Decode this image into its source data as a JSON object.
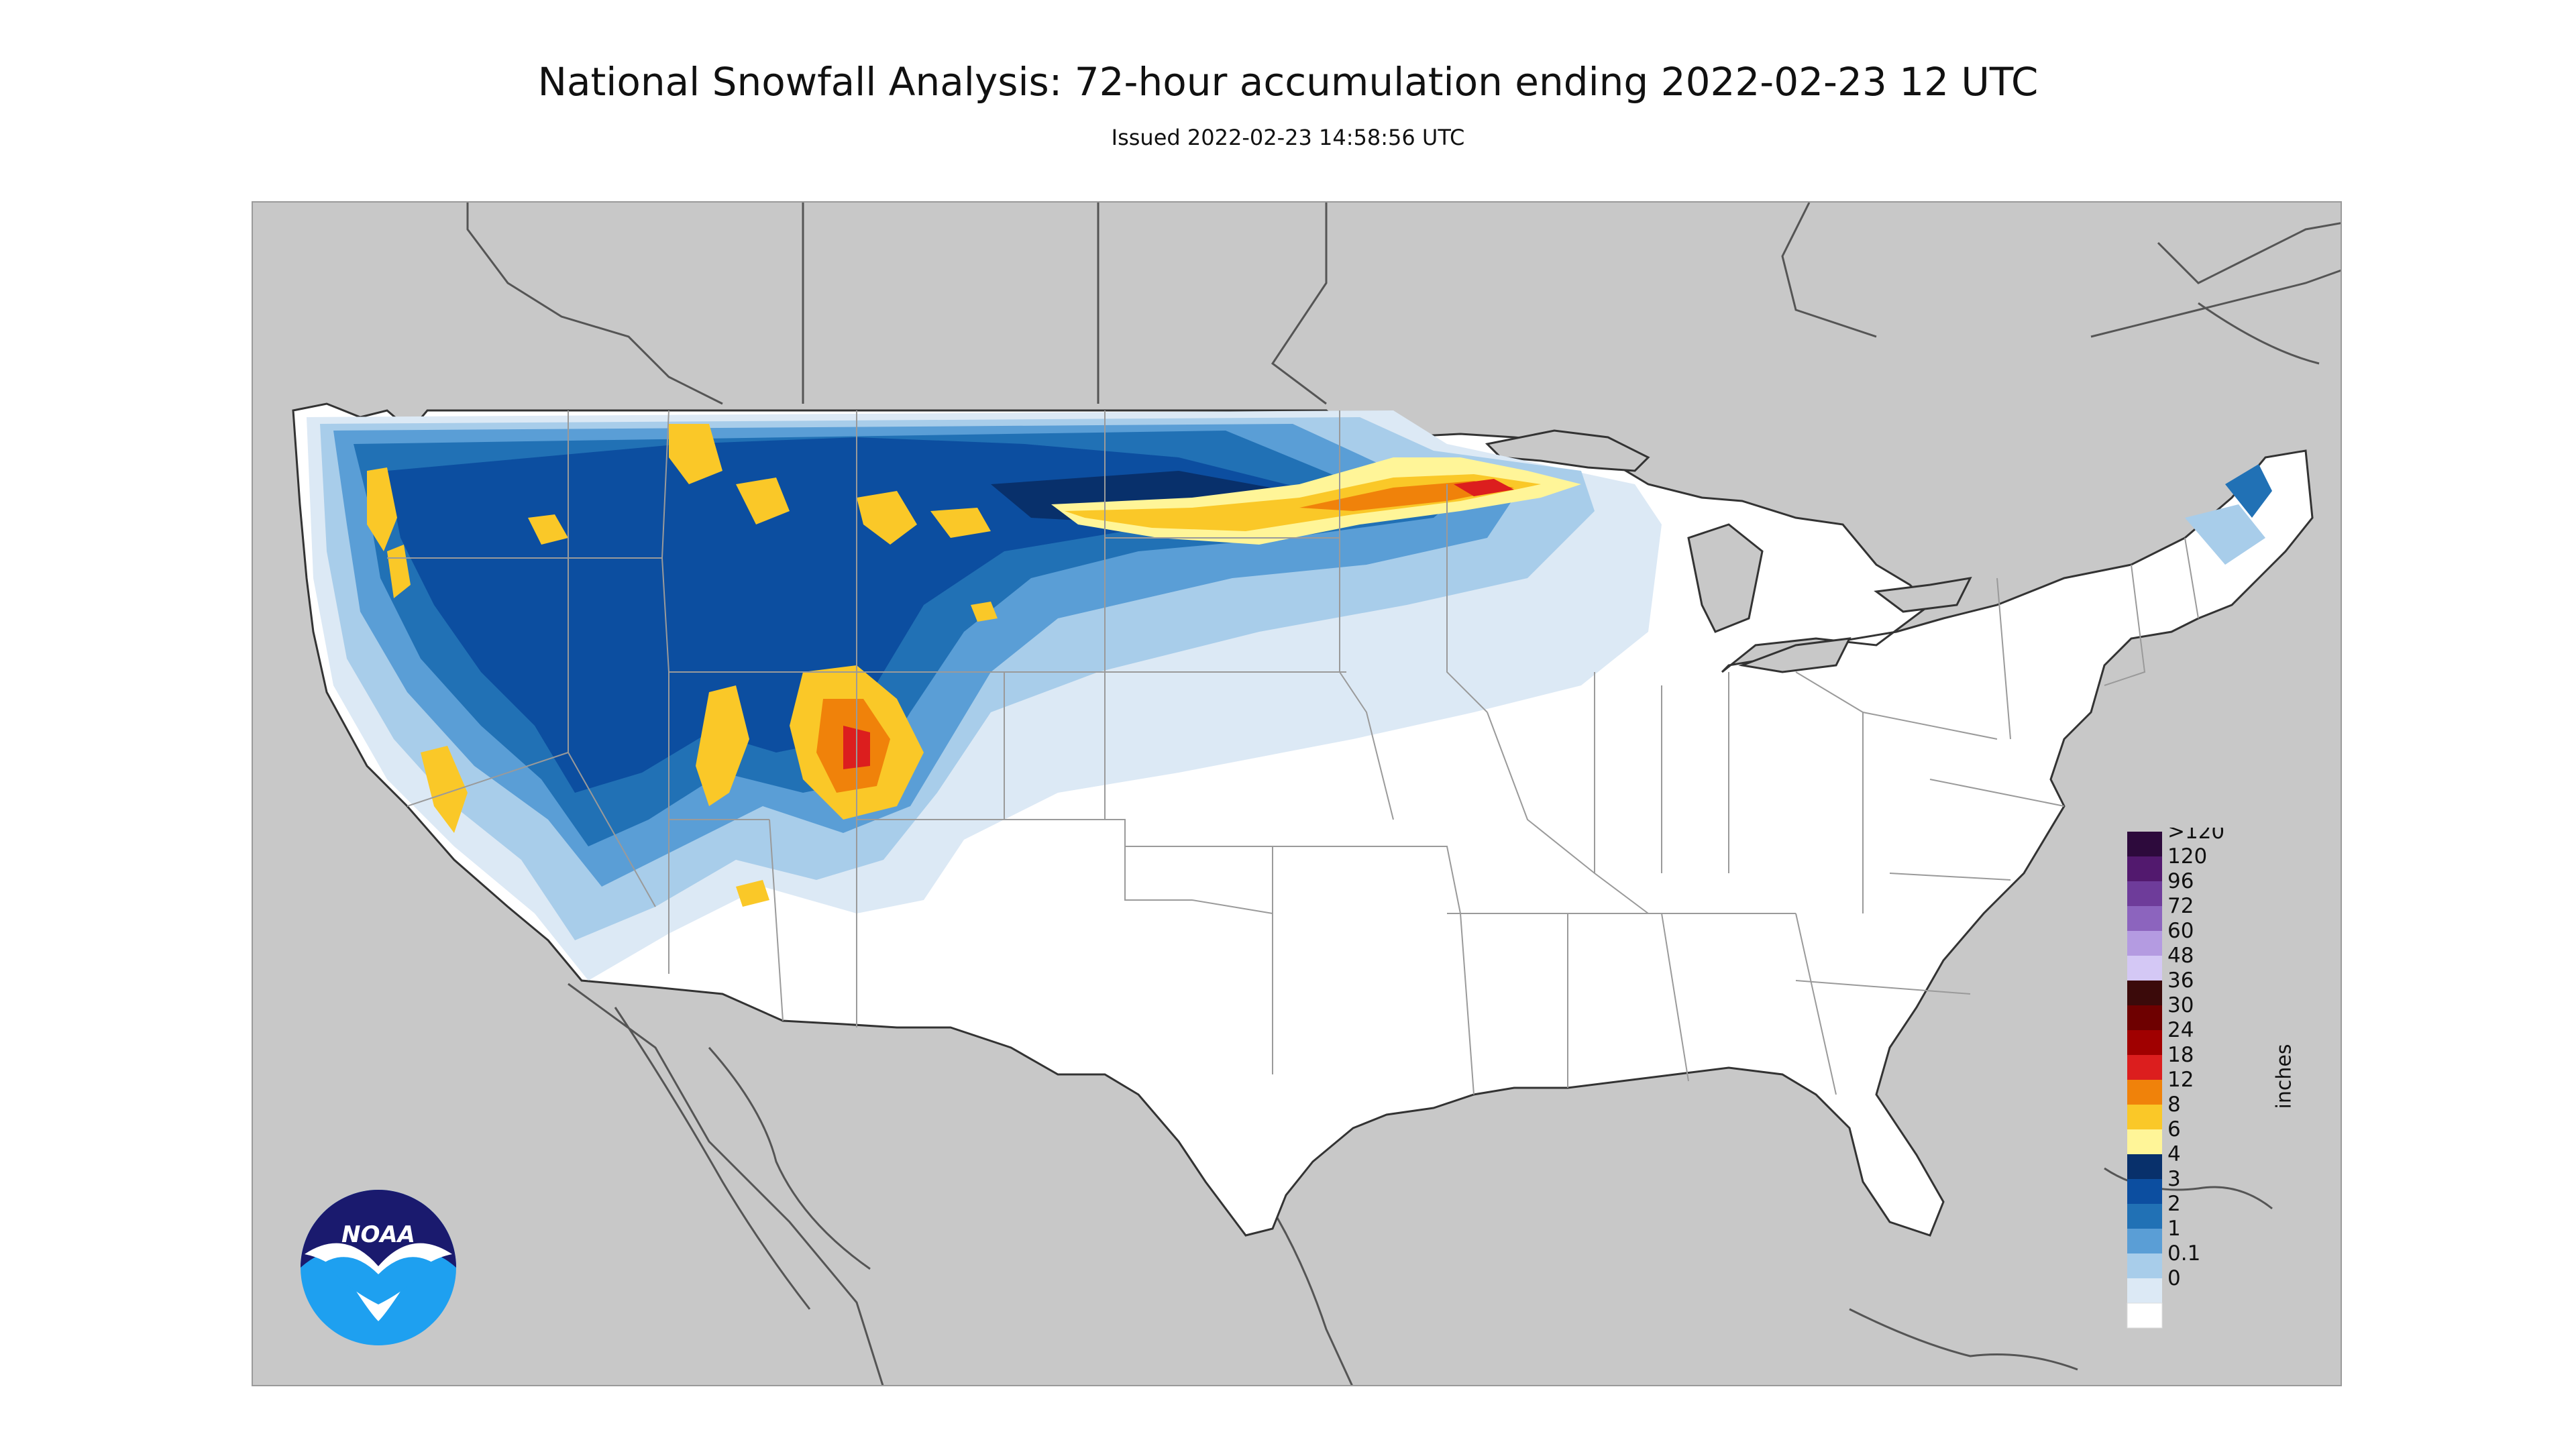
{
  "header": {
    "title": "National Snowfall Analysis: 72-hour accumulation ending 2022-02-23 12 UTC",
    "issued": "Issued 2022-02-23 14:58:56 UTC"
  },
  "colors": {
    "ocean_and_foreign_land": "#c8c8c8",
    "land_no_snow": "#ffffff",
    "borders": "#8f8f8f",
    "coastline": "#2b2b2b"
  },
  "legend": {
    "units_label": "inches",
    "items": [
      {
        "label": ">120",
        "color": "#2d0a3c"
      },
      {
        "label": "120",
        "color": "#52196e"
      },
      {
        "label": "96",
        "color": "#6e3c9a"
      },
      {
        "label": "72",
        "color": "#8c64be"
      },
      {
        "label": "60",
        "color": "#b49be1"
      },
      {
        "label": "48",
        "color": "#d4c8f5"
      },
      {
        "label": "36",
        "color": "#3b0a0a"
      },
      {
        "label": "30",
        "color": "#6e0000"
      },
      {
        "label": "24",
        "color": "#a00000"
      },
      {
        "label": "18",
        "color": "#dc1e1e"
      },
      {
        "label": "12",
        "color": "#f0820a"
      },
      {
        "label": "8",
        "color": "#fac828"
      },
      {
        "label": "6",
        "color": "#fff598"
      },
      {
        "label": "4",
        "color": "#08306b"
      },
      {
        "label": "3",
        "color": "#0c4ea0"
      },
      {
        "label": "2",
        "color": "#2171b5"
      },
      {
        "label": "1",
        "color": "#5a9ed6"
      },
      {
        "label": "0.1",
        "color": "#a8cdea"
      },
      {
        "label": "0",
        "color": "#dce9f5"
      }
    ],
    "zero_color": "#ffffff"
  },
  "logo": {
    "text": "NOAA",
    "colors": {
      "top": "#1a1a6e",
      "bottom": "#1ea0f0",
      "bird": "#ffffff"
    }
  }
}
